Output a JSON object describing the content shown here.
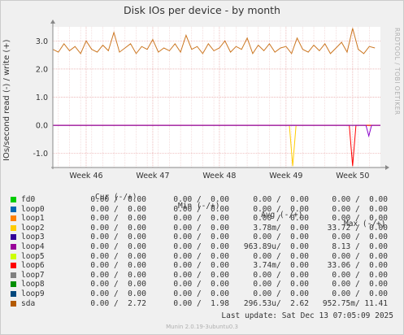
{
  "chart_data": {
    "type": "line",
    "title": "Disk IOs per device - by month",
    "ylabel": "IOs/second read (-) / write (+)",
    "credit": "RRDTOOL / TOBI OETIKER",
    "ylim": [
      -1.5,
      3.5
    ],
    "y_ticks": [
      {
        "value": 3.0,
        "label": "3.0"
      },
      {
        "value": 2.0,
        "label": "2.0"
      },
      {
        "value": 1.0,
        "label": "1.0"
      },
      {
        "value": 0.0,
        "label": "0.0"
      },
      {
        "value": -1.0,
        "label": "-1.0"
      }
    ],
    "x_range": [
      0,
      29.5
    ],
    "x_ticks": [
      {
        "value": 3,
        "label": "Week 46"
      },
      {
        "value": 9,
        "label": "Week 47"
      },
      {
        "value": 15,
        "label": "Week 48"
      },
      {
        "value": 21,
        "label": "Week 49"
      },
      {
        "value": 27,
        "label": "Week 50"
      }
    ],
    "grid": true,
    "series": [
      {
        "name": "sda",
        "color": "#cc7722",
        "x": [
          0,
          0.5,
          1,
          1.5,
          2,
          2.5,
          3,
          3.5,
          4,
          4.5,
          5,
          5.5,
          6,
          6.5,
          7,
          7.5,
          8,
          8.5,
          9,
          9.5,
          10,
          10.5,
          11,
          11.5,
          12,
          12.5,
          13,
          13.5,
          14,
          14.5,
          15,
          15.5,
          16,
          16.5,
          17,
          17.5,
          18,
          18.5,
          19,
          19.5,
          20,
          20.5,
          21,
          21.5,
          22,
          22.5,
          23,
          23.5,
          24,
          24.5,
          25,
          25.5,
          26,
          26.5,
          27,
          27.5,
          28,
          28.5,
          29
        ],
        "y": [
          2.7,
          2.6,
          2.9,
          2.65,
          2.8,
          2.55,
          3.0,
          2.7,
          2.6,
          2.85,
          2.65,
          3.3,
          2.6,
          2.75,
          2.9,
          2.55,
          2.8,
          2.7,
          3.05,
          2.6,
          2.75,
          2.65,
          2.9,
          2.6,
          3.2,
          2.7,
          2.8,
          2.55,
          2.9,
          2.65,
          2.75,
          3.0,
          2.6,
          2.8,
          2.7,
          3.1,
          2.55,
          2.85,
          2.65,
          2.9,
          2.6,
          2.75,
          2.8,
          2.55,
          3.1,
          2.7,
          2.6,
          2.85,
          2.65,
          2.9,
          2.55,
          2.75,
          2.95,
          2.6,
          3.45,
          2.7,
          2.55,
          2.8,
          2.75
        ]
      },
      {
        "name": "loop2",
        "color": "#ffcc00",
        "x": [
          0,
          21.3,
          21.6,
          21.9,
          29.5
        ],
        "y": [
          0,
          0,
          -1.45,
          0,
          0
        ]
      },
      {
        "name": "loop6",
        "color": "#ff0000",
        "x": [
          0,
          26.7,
          27,
          27.3,
          29.5
        ],
        "y": [
          0,
          0,
          -1.45,
          0,
          0
        ]
      },
      {
        "name": "loop4",
        "color": "#8800cc",
        "x": [
          0,
          28.2,
          28.45,
          28.7,
          29.5
        ],
        "y": [
          0,
          0,
          -0.38,
          0,
          0
        ]
      }
    ]
  },
  "legend": {
    "headers": {
      "cur": "Cur (-/+)",
      "min": "Min (-/+)",
      "avg": "Avg (-/+)",
      "max": "Max (-/+)"
    },
    "rows": [
      {
        "name": "fd0",
        "color": "#00cc00",
        "cur": "0.00 /  0.00",
        "min": "0.00 /  0.00",
        "avg": "0.00 /  0.00",
        "max": "0.00 /  0.00"
      },
      {
        "name": "loop0",
        "color": "#0066b3",
        "cur": "0.00 /  0.00",
        "min": "0.00 /  0.00",
        "avg": "0.00 /  0.00",
        "max": "0.00 /  0.00"
      },
      {
        "name": "loop1",
        "color": "#ff8000",
        "cur": "0.00 /  0.00",
        "min": "0.00 /  0.00",
        "avg": "0.00 /  0.00",
        "max": "0.00 /  0.00"
      },
      {
        "name": "loop2",
        "color": "#ffcc00",
        "cur": "0.00 /  0.00",
        "min": "0.00 /  0.00",
        "avg": "3.78m/  0.00",
        "max": "33.72 /  0.00"
      },
      {
        "name": "loop3",
        "color": "#330099",
        "cur": "0.00 /  0.00",
        "min": "0.00 /  0.00",
        "avg": "0.00 /  0.00",
        "max": "0.00 /  0.00"
      },
      {
        "name": "loop4",
        "color": "#990099",
        "cur": "0.00 /  0.00",
        "min": "0.00 /  0.00",
        "avg": "963.89u/  0.00",
        "max": "8.13 /  0.00"
      },
      {
        "name": "loop5",
        "color": "#ccff00",
        "cur": "0.00 /  0.00",
        "min": "0.00 /  0.00",
        "avg": "0.00 /  0.00",
        "max": "0.00 /  0.00"
      },
      {
        "name": "loop6",
        "color": "#ff0000",
        "cur": "0.00 /  0.00",
        "min": "0.00 /  0.00",
        "avg": "3.74m/  0.00",
        "max": "33.06 /  0.00"
      },
      {
        "name": "loop7",
        "color": "#808080",
        "cur": "0.00 /  0.00",
        "min": "0.00 /  0.00",
        "avg": "0.00 /  0.00",
        "max": "0.00 /  0.00"
      },
      {
        "name": "loop8",
        "color": "#008f00",
        "cur": "0.00 /  0.00",
        "min": "0.00 /  0.00",
        "avg": "0.00 /  0.00",
        "max": "0.00 /  0.00"
      },
      {
        "name": "loop9",
        "color": "#00487d",
        "cur": "0.00 /  0.00",
        "min": "0.00 /  0.00",
        "avg": "0.00 /  0.00",
        "max": "0.00 /  0.00"
      },
      {
        "name": "sda",
        "color": "#b35a00",
        "cur": "0.00 /  2.72",
        "min": "0.00 /  1.98",
        "avg": "296.53u/  2.62",
        "max": "952.75m/ 11.41"
      }
    ]
  },
  "last_update": "Last update:  Sat Dec 13 07:05:09 2025",
  "footer": "Munin 2.0.19-3ubuntu0.3"
}
